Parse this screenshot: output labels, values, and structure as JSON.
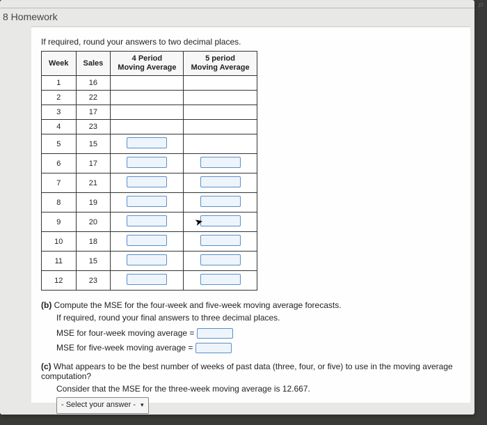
{
  "header": {
    "tabFragment": "",
    "homework": "8 Homework"
  },
  "instruction": "If required, round your answers to two decimal places.",
  "table": {
    "columns": {
      "week": "Week",
      "sales": "Sales",
      "ma4_l1": "4 Period",
      "ma4_l2": "Moving Average",
      "ma5_l1": "5 period",
      "ma5_l2": "Moving Average"
    },
    "rows": [
      {
        "week": "1",
        "sales": "16",
        "ma4": null,
        "ma5": null
      },
      {
        "week": "2",
        "sales": "22",
        "ma4": null,
        "ma5": null
      },
      {
        "week": "3",
        "sales": "17",
        "ma4": null,
        "ma5": null
      },
      {
        "week": "4",
        "sales": "23",
        "ma4": null,
        "ma5": null
      },
      {
        "week": "5",
        "sales": "15",
        "ma4": "input",
        "ma5": null
      },
      {
        "week": "6",
        "sales": "17",
        "ma4": "input",
        "ma5": "input"
      },
      {
        "week": "7",
        "sales": "21",
        "ma4": "input",
        "ma5": "input"
      },
      {
        "week": "8",
        "sales": "19",
        "ma4": "input",
        "ma5": "input"
      },
      {
        "week": "9",
        "sales": "20",
        "ma4": "input",
        "ma5": "input"
      },
      {
        "week": "10",
        "sales": "18",
        "ma4": "input",
        "ma5": "input"
      },
      {
        "week": "11",
        "sales": "15",
        "ma4": "input",
        "ma5": "input"
      },
      {
        "week": "12",
        "sales": "23",
        "ma4": "input",
        "ma5": "input"
      }
    ]
  },
  "partB": {
    "label": "(b)",
    "text1": "Compute the MSE for the four-week and five-week moving average forecasts.",
    "text2": "If required, round your final answers to three decimal places.",
    "mse4": "MSE for four-week moving average =",
    "mse5": "MSE for five-week moving average ="
  },
  "partC": {
    "label": "(c)",
    "text1": "What appears to be the best number of weeks of past data (three, four, or five) to use in the moving average computation?",
    "text2": "Consider that the MSE for the three-week moving average is 12.667.",
    "select": "- Select your answer -"
  }
}
